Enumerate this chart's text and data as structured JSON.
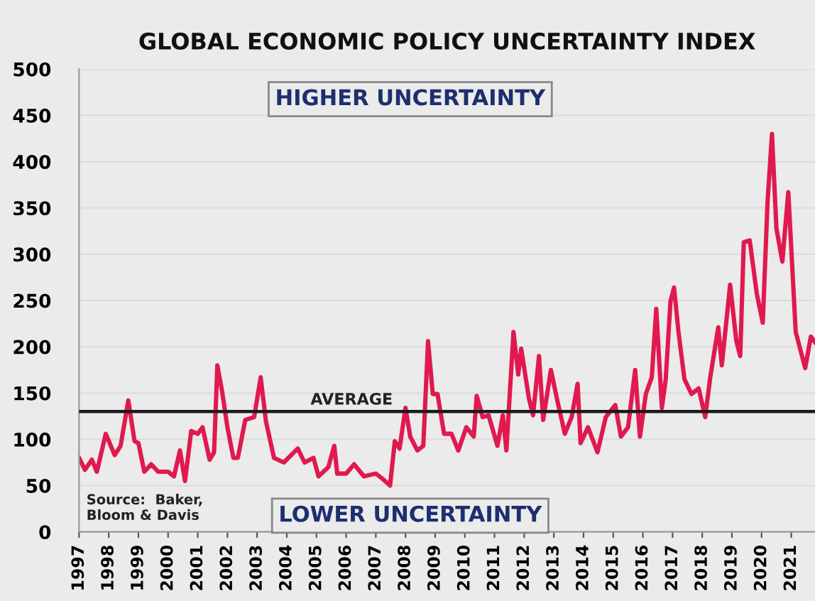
{
  "chart_data": {
    "type": "line",
    "title": "GLOBAL ECONOMIC POLICY UNCERTAINTY INDEX",
    "x": [
      1997.0,
      1997.2,
      1997.43,
      1997.6,
      1997.9,
      1998.2,
      1998.4,
      1998.66,
      1998.87,
      1999.0,
      1999.2,
      1999.43,
      1999.67,
      2000.0,
      2000.2,
      2000.4,
      2000.57,
      2000.78,
      2001.0,
      2001.16,
      2001.4,
      2001.55,
      2001.66,
      2001.82,
      2002.0,
      2002.2,
      2002.35,
      2002.6,
      2002.9,
      2003.12,
      2003.3,
      2003.57,
      2003.9,
      2004.37,
      2004.6,
      2004.9,
      2005.07,
      2005.4,
      2005.6,
      2005.7,
      2006.0,
      2006.27,
      2006.6,
      2007.0,
      2007.24,
      2007.48,
      2007.64,
      2007.8,
      2008.0,
      2008.16,
      2008.4,
      2008.6,
      2008.76,
      2008.92,
      2009.08,
      2009.3,
      2009.55,
      2009.78,
      2010.05,
      2010.3,
      2010.4,
      2010.6,
      2010.8,
      2011.1,
      2011.28,
      2011.4,
      2011.64,
      2011.8,
      2011.9,
      2012.16,
      2012.3,
      2012.5,
      2012.64,
      2012.9,
      2013.13,
      2013.37,
      2013.6,
      2013.8,
      2013.9,
      2014.15,
      2014.47,
      2014.75,
      2015.07,
      2015.26,
      2015.5,
      2015.74,
      2015.9,
      2016.1,
      2016.3,
      2016.45,
      2016.64,
      2016.77,
      2016.93,
      2017.05,
      2017.2,
      2017.4,
      2017.64,
      2017.88,
      2018.1,
      2018.27,
      2018.54,
      2018.66,
      2018.94,
      2019.15,
      2019.28,
      2019.4,
      2019.6,
      2019.84,
      2020.04,
      2020.2,
      2020.35,
      2020.5,
      2020.7,
      2020.9,
      2021.15,
      2021.47,
      2021.66,
      2021.8
    ],
    "series": [
      {
        "color": "#e0194f",
        "values": [
          80,
          67,
          78,
          65,
          106,
          83,
          93,
          142,
          98,
          96,
          65,
          73,
          65,
          65,
          60,
          88,
          55,
          109,
          106,
          113,
          78,
          86,
          180,
          152,
          113,
          80,
          80,
          121,
          124,
          167,
          119,
          80,
          75,
          90,
          75,
          80,
          60,
          70,
          93,
          63,
          63,
          73,
          60,
          63,
          57,
          50,
          98,
          90,
          134,
          103,
          88,
          93,
          206,
          149,
          149,
          106,
          106,
          88,
          113,
          103,
          147,
          124,
          126,
          93,
          126,
          88,
          216,
          170,
          198,
          144,
          126,
          190,
          121,
          175,
          140,
          106,
          124,
          160,
          96,
          113,
          86,
          124,
          137,
          103,
          113,
          175,
          103,
          149,
          167,
          241,
          134,
          165,
          249,
          264,
          216,
          165,
          149,
          155,
          124,
          167,
          221,
          180,
          267,
          206,
          190,
          313,
          315,
          257,
          226,
          356,
          430,
          328,
          292,
          367,
          216,
          177,
          211,
          205
        ]
      }
    ],
    "xlim": [
      1997,
      2021.8
    ],
    "xticks": [
      1997,
      1998,
      1999,
      2000,
      2001,
      2002,
      2003,
      2004,
      2005,
      2006,
      2007,
      2008,
      2009,
      2010,
      2011,
      2012,
      2013,
      2014,
      2015,
      2016,
      2017,
      2018,
      2019,
      2020,
      2021
    ],
    "ylim": [
      0,
      500
    ],
    "yticks": [
      0,
      50,
      100,
      150,
      200,
      250,
      300,
      350,
      400,
      450,
      500
    ],
    "grid": "y",
    "legend": false,
    "marker": "none",
    "line_style": "solid",
    "ref_lines": [
      {
        "axis": "y",
        "value": 130,
        "label": "AVERAGE",
        "color": "#1a1a1a"
      }
    ],
    "annotations": [
      "HIGHER UNCERTAINTY",
      "LOWER UNCERTAINTY",
      "Source:  Baker,\nBloom & Davis"
    ]
  }
}
